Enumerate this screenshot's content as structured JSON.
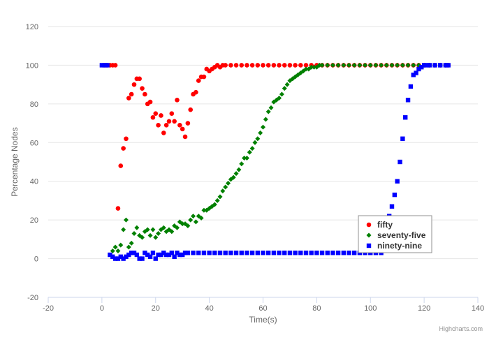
{
  "chart_data": {
    "type": "scatter",
    "xlabel": "Time(s)",
    "ylabel": "Percentage Nodes",
    "xlim": [
      -20,
      140
    ],
    "ylim": [
      -20,
      120
    ],
    "xticks": [
      -20,
      0,
      20,
      40,
      60,
      80,
      100,
      120,
      140
    ],
    "yticks": [
      -20,
      0,
      20,
      40,
      60,
      80,
      100,
      120
    ],
    "grid": "horizontal",
    "legend_position": "bottom-right",
    "credit": "Highcharts.com",
    "series": [
      {
        "name": "fifty",
        "color": "#ff0000",
        "marker": "circle",
        "points": [
          [
            1,
            100
          ],
          [
            2,
            100
          ],
          [
            3,
            100
          ],
          [
            4,
            100
          ],
          [
            5,
            100
          ],
          [
            6,
            26
          ],
          [
            7,
            48
          ],
          [
            8,
            57
          ],
          [
            9,
            62
          ],
          [
            10,
            83
          ],
          [
            11,
            85
          ],
          [
            12,
            90
          ],
          [
            13,
            93
          ],
          [
            14,
            93
          ],
          [
            15,
            88
          ],
          [
            16,
            85
          ],
          [
            17,
            80
          ],
          [
            18,
            81
          ],
          [
            19,
            73
          ],
          [
            20,
            75
          ],
          [
            21,
            69
          ],
          [
            22,
            74
          ],
          [
            23,
            65
          ],
          [
            24,
            69
          ],
          [
            25,
            71
          ],
          [
            26,
            75
          ],
          [
            27,
            71
          ],
          [
            28,
            82
          ],
          [
            29,
            69
          ],
          [
            30,
            67
          ],
          [
            31,
            63
          ],
          [
            32,
            70
          ],
          [
            33,
            77
          ],
          [
            34,
            85
          ],
          [
            35,
            86
          ],
          [
            36,
            92
          ],
          [
            37,
            94
          ],
          [
            38,
            94
          ],
          [
            39,
            98
          ],
          [
            40,
            97
          ],
          [
            41,
            98
          ],
          [
            42,
            99
          ],
          [
            43,
            100
          ],
          [
            44,
            99
          ],
          [
            45,
            100
          ],
          [
            46,
            100
          ],
          [
            48,
            100
          ],
          [
            50,
            100
          ],
          [
            52,
            100
          ],
          [
            54,
            100
          ],
          [
            56,
            100
          ],
          [
            58,
            100
          ],
          [
            60,
            100
          ],
          [
            62,
            100
          ],
          [
            64,
            100
          ],
          [
            66,
            100
          ],
          [
            68,
            100
          ],
          [
            70,
            100
          ],
          [
            72,
            100
          ],
          [
            74,
            100
          ],
          [
            76,
            100
          ],
          [
            78,
            100
          ],
          [
            80,
            100
          ],
          [
            82,
            100
          ],
          [
            84,
            100
          ],
          [
            86,
            100
          ],
          [
            88,
            100
          ],
          [
            90,
            100
          ],
          [
            92,
            100
          ],
          [
            94,
            100
          ],
          [
            96,
            100
          ],
          [
            98,
            100
          ],
          [
            100,
            100
          ],
          [
            102,
            100
          ],
          [
            104,
            100
          ],
          [
            106,
            100
          ],
          [
            108,
            100
          ],
          [
            110,
            100
          ],
          [
            112,
            100
          ],
          [
            114,
            100
          ],
          [
            116,
            100
          ],
          [
            118,
            100
          ],
          [
            120,
            100
          ],
          [
            122,
            100
          ],
          [
            124,
            100
          ],
          [
            126,
            100
          ],
          [
            128,
            100
          ],
          [
            129,
            100
          ]
        ]
      },
      {
        "name": "seventy-five",
        "color": "#008000",
        "marker": "diamond",
        "points": [
          [
            4,
            4
          ],
          [
            5,
            6
          ],
          [
            6,
            4
          ],
          [
            7,
            7
          ],
          [
            8,
            15
          ],
          [
            9,
            20
          ],
          [
            10,
            6
          ],
          [
            11,
            8
          ],
          [
            12,
            13
          ],
          [
            13,
            16
          ],
          [
            14,
            12
          ],
          [
            15,
            11
          ],
          [
            16,
            14
          ],
          [
            17,
            15
          ],
          [
            18,
            12
          ],
          [
            19,
            15
          ],
          [
            20,
            11
          ],
          [
            21,
            13
          ],
          [
            22,
            15
          ],
          [
            23,
            16
          ],
          [
            24,
            14
          ],
          [
            25,
            15
          ],
          [
            26,
            14
          ],
          [
            27,
            17
          ],
          [
            28,
            16
          ],
          [
            29,
            19
          ],
          [
            30,
            18
          ],
          [
            31,
            18
          ],
          [
            32,
            17
          ],
          [
            33,
            20
          ],
          [
            34,
            22
          ],
          [
            35,
            19
          ],
          [
            36,
            22
          ],
          [
            37,
            21
          ],
          [
            38,
            25
          ],
          [
            39,
            25
          ],
          [
            40,
            26
          ],
          [
            41,
            27
          ],
          [
            42,
            28
          ],
          [
            43,
            30
          ],
          [
            44,
            32
          ],
          [
            45,
            35
          ],
          [
            46,
            37
          ],
          [
            47,
            39
          ],
          [
            48,
            41
          ],
          [
            49,
            42
          ],
          [
            50,
            44
          ],
          [
            51,
            46
          ],
          [
            52,
            49
          ],
          [
            53,
            52
          ],
          [
            54,
            52
          ],
          [
            55,
            55
          ],
          [
            56,
            57
          ],
          [
            57,
            60
          ],
          [
            58,
            62
          ],
          [
            59,
            65
          ],
          [
            60,
            68
          ],
          [
            61,
            72
          ],
          [
            62,
            76
          ],
          [
            63,
            78
          ],
          [
            64,
            81
          ],
          [
            65,
            82
          ],
          [
            66,
            83
          ],
          [
            67,
            85
          ],
          [
            68,
            88
          ],
          [
            69,
            90
          ],
          [
            70,
            92
          ],
          [
            71,
            93
          ],
          [
            72,
            94
          ],
          [
            73,
            95
          ],
          [
            74,
            96
          ],
          [
            75,
            97
          ],
          [
            76,
            98
          ],
          [
            77,
            98
          ],
          [
            78,
            99
          ],
          [
            79,
            99
          ],
          [
            80,
            99
          ],
          [
            81,
            100
          ],
          [
            82,
            100
          ],
          [
            84,
            100
          ],
          [
            86,
            100
          ],
          [
            88,
            100
          ],
          [
            90,
            100
          ],
          [
            92,
            100
          ],
          [
            94,
            100
          ],
          [
            96,
            100
          ],
          [
            98,
            100
          ],
          [
            100,
            100
          ],
          [
            102,
            100
          ],
          [
            104,
            100
          ],
          [
            106,
            100
          ],
          [
            108,
            100
          ],
          [
            110,
            100
          ],
          [
            112,
            100
          ],
          [
            114,
            100
          ],
          [
            116,
            100
          ],
          [
            118,
            100
          ],
          [
            120,
            100
          ],
          [
            122,
            100
          ],
          [
            124,
            100
          ],
          [
            126,
            100
          ],
          [
            128,
            100
          ]
        ]
      },
      {
        "name": "ninety-nine",
        "color": "#0000ff",
        "marker": "square",
        "points": [
          [
            0,
            100
          ],
          [
            1,
            100
          ],
          [
            2,
            100
          ],
          [
            3,
            2
          ],
          [
            4,
            1
          ],
          [
            5,
            0
          ],
          [
            6,
            0
          ],
          [
            7,
            1
          ],
          [
            8,
            0
          ],
          [
            9,
            1
          ],
          [
            10,
            2
          ],
          [
            11,
            3
          ],
          [
            12,
            3
          ],
          [
            13,
            2
          ],
          [
            14,
            0
          ],
          [
            15,
            0
          ],
          [
            16,
            3
          ],
          [
            17,
            2
          ],
          [
            18,
            1
          ],
          [
            19,
            3
          ],
          [
            20,
            0
          ],
          [
            21,
            2
          ],
          [
            22,
            2
          ],
          [
            23,
            3
          ],
          [
            24,
            2
          ],
          [
            25,
            2
          ],
          [
            26,
            3
          ],
          [
            27,
            1
          ],
          [
            28,
            3
          ],
          [
            29,
            2
          ],
          [
            30,
            2
          ],
          [
            31,
            3
          ],
          [
            32,
            3
          ],
          [
            34,
            3
          ],
          [
            36,
            3
          ],
          [
            38,
            3
          ],
          [
            40,
            3
          ],
          [
            42,
            3
          ],
          [
            44,
            3
          ],
          [
            46,
            3
          ],
          [
            48,
            3
          ],
          [
            50,
            3
          ],
          [
            52,
            3
          ],
          [
            54,
            3
          ],
          [
            56,
            3
          ],
          [
            58,
            3
          ],
          [
            60,
            3
          ],
          [
            62,
            3
          ],
          [
            64,
            3
          ],
          [
            66,
            3
          ],
          [
            68,
            3
          ],
          [
            70,
            3
          ],
          [
            72,
            3
          ],
          [
            74,
            3
          ],
          [
            76,
            3
          ],
          [
            78,
            3
          ],
          [
            80,
            3
          ],
          [
            82,
            3
          ],
          [
            84,
            3
          ],
          [
            86,
            3
          ],
          [
            88,
            3
          ],
          [
            90,
            3
          ],
          [
            92,
            3
          ],
          [
            94,
            3
          ],
          [
            96,
            3
          ],
          [
            98,
            3
          ],
          [
            100,
            3
          ],
          [
            102,
            3
          ],
          [
            104,
            3
          ],
          [
            106,
            14
          ],
          [
            107,
            22
          ],
          [
            108,
            27
          ],
          [
            109,
            33
          ],
          [
            110,
            40
          ],
          [
            111,
            50
          ],
          [
            112,
            62
          ],
          [
            113,
            73
          ],
          [
            114,
            82
          ],
          [
            115,
            89
          ],
          [
            116,
            95
          ],
          [
            117,
            96
          ],
          [
            118,
            98
          ],
          [
            119,
            99
          ],
          [
            120,
            100
          ],
          [
            121,
            100
          ],
          [
            122,
            100
          ],
          [
            124,
            100
          ],
          [
            126,
            100
          ],
          [
            128,
            100
          ],
          [
            129,
            100
          ]
        ]
      }
    ]
  }
}
